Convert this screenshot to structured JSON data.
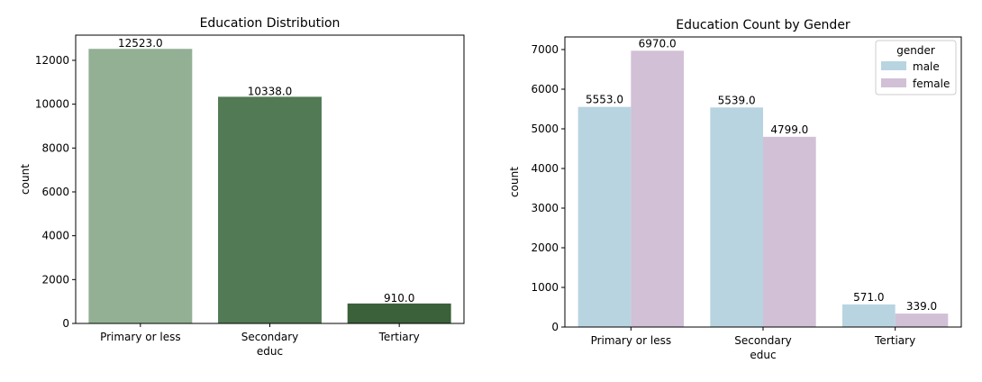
{
  "chart_data": [
    {
      "type": "bar",
      "title": "Education Distribution",
      "xlabel": "educ",
      "ylabel": "count",
      "categories": [
        "Primary or less",
        "Secondary",
        "Tertiary"
      ],
      "values": [
        12523,
        10338,
        910
      ],
      "value_labels": [
        "12523.0",
        "10338.0",
        "910.0"
      ],
      "colors": [
        "#93b095",
        "#527a54",
        "#3a6139"
      ],
      "yticks": [
        0,
        2000,
        4000,
        6000,
        8000,
        10000,
        12000
      ],
      "ylim": [
        0,
        13149
      ],
      "grid": false
    },
    {
      "type": "bar",
      "title": "Education Count by Gender",
      "xlabel": "educ",
      "ylabel": "count",
      "categories": [
        "Primary or less",
        "Secondary",
        "Tertiary"
      ],
      "series": [
        {
          "name": "male",
          "values": [
            5553,
            5539,
            571
          ],
          "value_labels": [
            "5553.0",
            "5539.0",
            "571.0"
          ],
          "color": "#b8d4e1"
        },
        {
          "name": "female",
          "values": [
            6970,
            4799,
            339
          ],
          "value_labels": [
            "6970.0",
            "4799.0",
            "339.0"
          ],
          "color": "#d1c0d6"
        }
      ],
      "legend": {
        "title": "gender",
        "placement": "top-right"
      },
      "yticks": [
        0,
        1000,
        2000,
        3000,
        4000,
        5000,
        6000,
        7000
      ],
      "ylim": [
        0,
        7318
      ],
      "grid": false
    }
  ]
}
